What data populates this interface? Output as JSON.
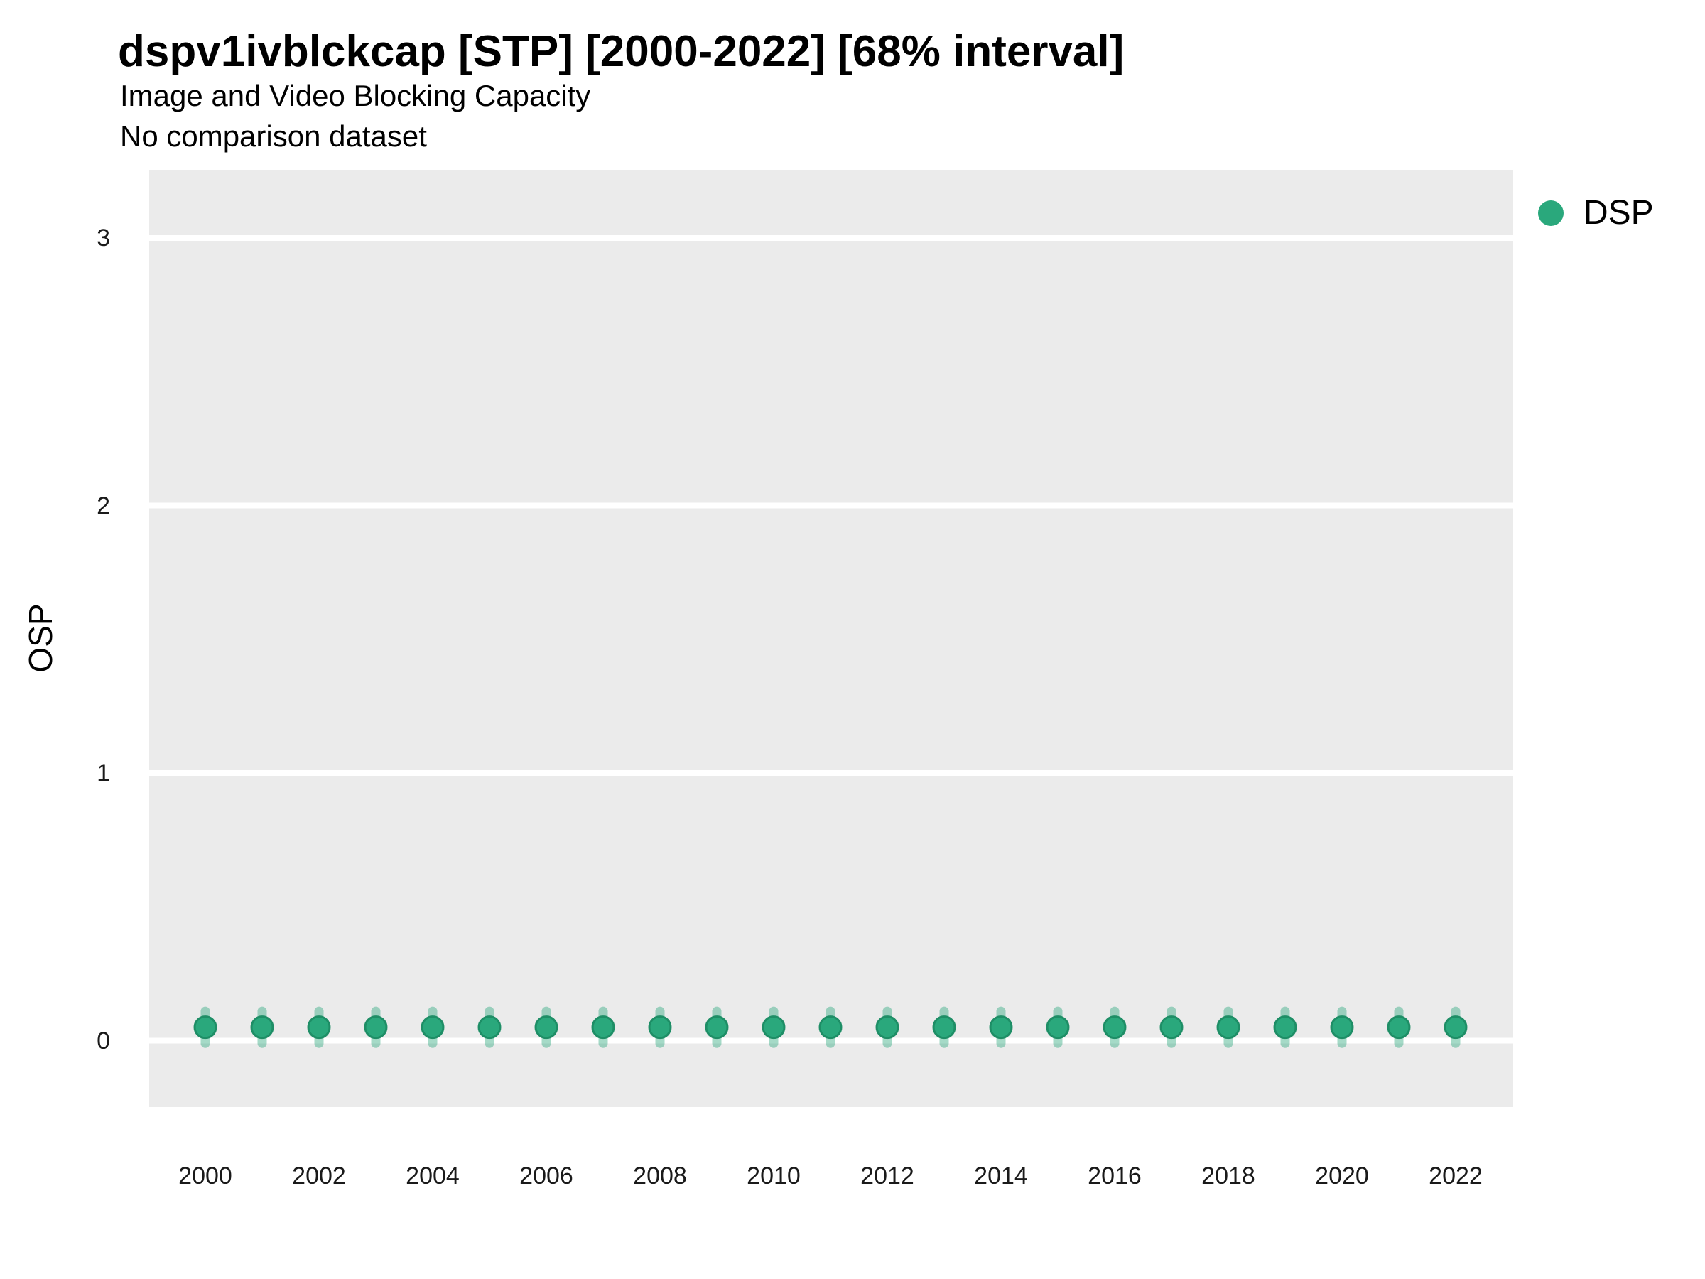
{
  "header": {
    "title": "dspv1ivblckcap [STP] [2000-2022] [68% interval]",
    "subtitle": "Image and Video Blocking Capacity",
    "note": "No comparison dataset"
  },
  "legend": {
    "items": [
      {
        "label": "DSP",
        "marker": "circle-icon",
        "color": "#2aa87c"
      }
    ],
    "position": "right-top"
  },
  "chart_data": {
    "type": "scatter",
    "title": "dspv1ivblckcap [STP] [2000-2022] [68% interval]",
    "subtitle": "Image and Video Blocking Capacity",
    "note": "No comparison dataset",
    "xlabel": "",
    "ylabel": "OSP",
    "interval_label": "68% interval",
    "x": [
      2000,
      2001,
      2002,
      2003,
      2004,
      2005,
      2006,
      2007,
      2008,
      2009,
      2010,
      2011,
      2012,
      2013,
      2014,
      2015,
      2016,
      2017,
      2018,
      2019,
      2020,
      2021,
      2022
    ],
    "series": [
      {
        "name": "DSP",
        "values": [
          0.05,
          0.05,
          0.05,
          0.05,
          0.05,
          0.05,
          0.05,
          0.05,
          0.05,
          0.05,
          0.05,
          0.05,
          0.05,
          0.05,
          0.05,
          0.05,
          0.05,
          0.05,
          0.05,
          0.05,
          0.05,
          0.05,
          0.05
        ],
        "interval_low": [
          -0.01,
          -0.01,
          -0.01,
          -0.01,
          -0.01,
          -0.01,
          -0.01,
          -0.01,
          -0.01,
          -0.01,
          -0.01,
          -0.01,
          -0.01,
          -0.01,
          -0.01,
          -0.01,
          -0.01,
          -0.01,
          -0.01,
          -0.01,
          -0.01,
          -0.01,
          -0.01
        ],
        "interval_high": [
          0.11,
          0.11,
          0.11,
          0.11,
          0.11,
          0.11,
          0.11,
          0.11,
          0.11,
          0.11,
          0.11,
          0.11,
          0.11,
          0.11,
          0.11,
          0.11,
          0.11,
          0.11,
          0.11,
          0.11,
          0.11,
          0.11,
          0.11
        ]
      }
    ],
    "xticks": [
      2000,
      2002,
      2004,
      2006,
      2008,
      2010,
      2012,
      2014,
      2016,
      2018,
      2020,
      2022
    ],
    "yticks": [
      0,
      1,
      2,
      3
    ],
    "xlim": [
      1999.0,
      2023.0
    ],
    "ylim": [
      -0.25,
      3.26
    ],
    "grid": {
      "major": true,
      "minor": false
    },
    "legend_position": "right",
    "colors": {
      "point": "#2aa87c",
      "point_stroke": "#1e8e66",
      "interval": "#2aa87c",
      "interval_opacity": 0.42,
      "panel_bg": "#ebebeb",
      "grid": "#ffffff",
      "title_text": "#000000",
      "tick_text": "#1a1a1a"
    }
  }
}
